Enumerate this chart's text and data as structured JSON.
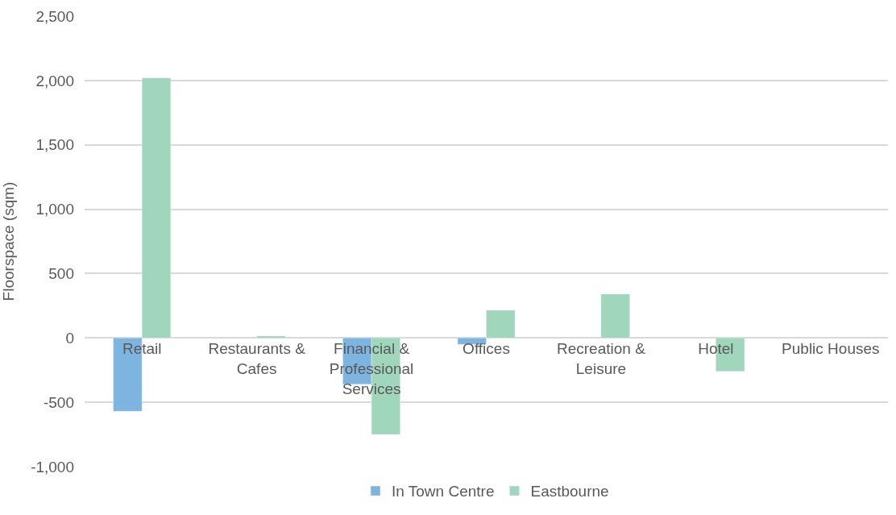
{
  "chart_data": {
    "type": "bar",
    "ylabel": "Floorspace (sqm)",
    "categories": [
      "Retail",
      "Restaurants & Cafes",
      "Financial & Professional Services",
      "Offices",
      "Recreation & Leisure",
      "Hotel",
      "Public Houses"
    ],
    "series": [
      {
        "name": "In Town Centre",
        "color": "#7eb4e0",
        "values": [
          -570,
          null,
          -360,
          -50,
          null,
          null,
          null
        ]
      },
      {
        "name": "Eastbourne",
        "color": "#a0d6bc",
        "values": [
          2020,
          15,
          -750,
          215,
          340,
          -260,
          null
        ]
      }
    ],
    "ylim": [
      -1000,
      2500
    ],
    "yticks": [
      {
        "value": -1000,
        "label": "-1,000"
      },
      {
        "value": -500,
        "label": "-500"
      },
      0,
      500,
      {
        "value": 1000,
        "label": "1,000"
      },
      {
        "value": 1500,
        "label": "1,500"
      },
      {
        "value": 2000,
        "label": "2,000"
      },
      {
        "value": 2500,
        "label": "2,500"
      }
    ],
    "grid": "y",
    "legend": "bottom"
  }
}
